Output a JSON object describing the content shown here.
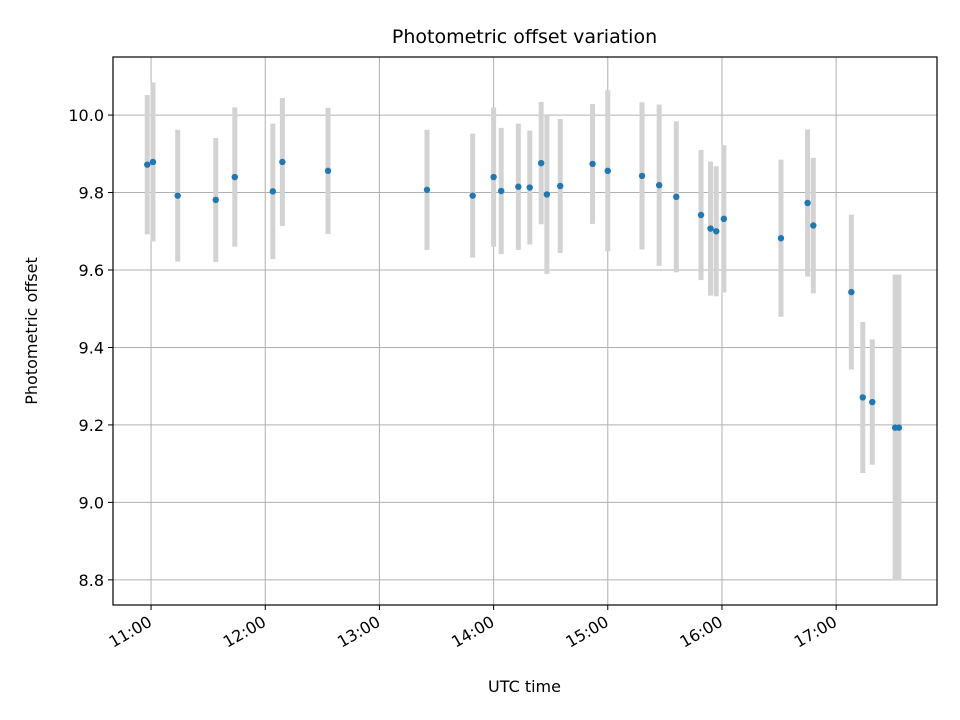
{
  "chart_data": {
    "type": "scatter",
    "title": "Photometric offset variation",
    "xlabel": "UTC time",
    "ylabel": "Photometric offset",
    "x_ticks": [
      "11:00",
      "12:00",
      "13:00",
      "14:00",
      "15:00",
      "16:00",
      "17:00"
    ],
    "y_ticks": [
      "8.8",
      "9.0",
      "9.2",
      "9.4",
      "9.6",
      "9.8",
      "10.0"
    ],
    "xlim": [
      "10:40",
      "17:53"
    ],
    "ylim": [
      8.735,
      10.15
    ],
    "grid": true,
    "error_bars": true,
    "points": [
      {
        "x": "10:58",
        "y": 9.872,
        "yerr": 0.18
      },
      {
        "x": "11:01",
        "y": 9.879,
        "yerr": 0.205
      },
      {
        "x": "11:14",
        "y": 9.792,
        "yerr": 0.17
      },
      {
        "x": "11:34",
        "y": 9.781,
        "yerr": 0.16
      },
      {
        "x": "11:44",
        "y": 9.84,
        "yerr": 0.18
      },
      {
        "x": "12:04",
        "y": 9.803,
        "yerr": 0.175
      },
      {
        "x": "12:09",
        "y": 9.879,
        "yerr": 0.165
      },
      {
        "x": "12:33",
        "y": 9.856,
        "yerr": 0.163
      },
      {
        "x": "13:25",
        "y": 9.807,
        "yerr": 0.155
      },
      {
        "x": "13:49",
        "y": 9.792,
        "yerr": 0.16
      },
      {
        "x": "14:00",
        "y": 9.84,
        "yerr": 0.18
      },
      {
        "x": "14:04",
        "y": 9.804,
        "yerr": 0.163
      },
      {
        "x": "14:13",
        "y": 9.815,
        "yerr": 0.163
      },
      {
        "x": "14:19",
        "y": 9.813,
        "yerr": 0.147
      },
      {
        "x": "14:25",
        "y": 9.876,
        "yerr": 0.158
      },
      {
        "x": "14:28",
        "y": 9.795,
        "yerr": 0.205
      },
      {
        "x": "14:35",
        "y": 9.817,
        "yerr": 0.173
      },
      {
        "x": "14:52",
        "y": 9.874,
        "yerr": 0.155
      },
      {
        "x": "15:00",
        "y": 9.856,
        "yerr": 0.208
      },
      {
        "x": "15:18",
        "y": 9.843,
        "yerr": 0.19
      },
      {
        "x": "15:27",
        "y": 9.819,
        "yerr": 0.208
      },
      {
        "x": "15:36",
        "y": 9.789,
        "yerr": 0.195
      },
      {
        "x": "15:49",
        "y": 9.742,
        "yerr": 0.168
      },
      {
        "x": "15:54",
        "y": 9.707,
        "yerr": 0.173
      },
      {
        "x": "15:57",
        "y": 9.7,
        "yerr": 0.168
      },
      {
        "x": "16:01",
        "y": 9.732,
        "yerr": 0.19
      },
      {
        "x": "16:31",
        "y": 9.682,
        "yerr": 0.203
      },
      {
        "x": "16:45",
        "y": 9.773,
        "yerr": 0.19
      },
      {
        "x": "16:48",
        "y": 9.715,
        "yerr": 0.175
      },
      {
        "x": "17:08",
        "y": 9.543,
        "yerr": 0.2
      },
      {
        "x": "17:14",
        "y": 9.271,
        "yerr": 0.195
      },
      {
        "x": "17:19",
        "y": 9.259,
        "yerr": 0.162
      },
      {
        "x": "17:31",
        "y": 9.193,
        "yerr": 0.395
      },
      {
        "x": "17:33",
        "y": 9.193,
        "yerr": 0.395
      }
    ],
    "colors": {
      "marker": "#1f77b4",
      "errorbar": "#d3d3d3",
      "grid": "#b0b0b0",
      "axes": "#000000"
    }
  }
}
